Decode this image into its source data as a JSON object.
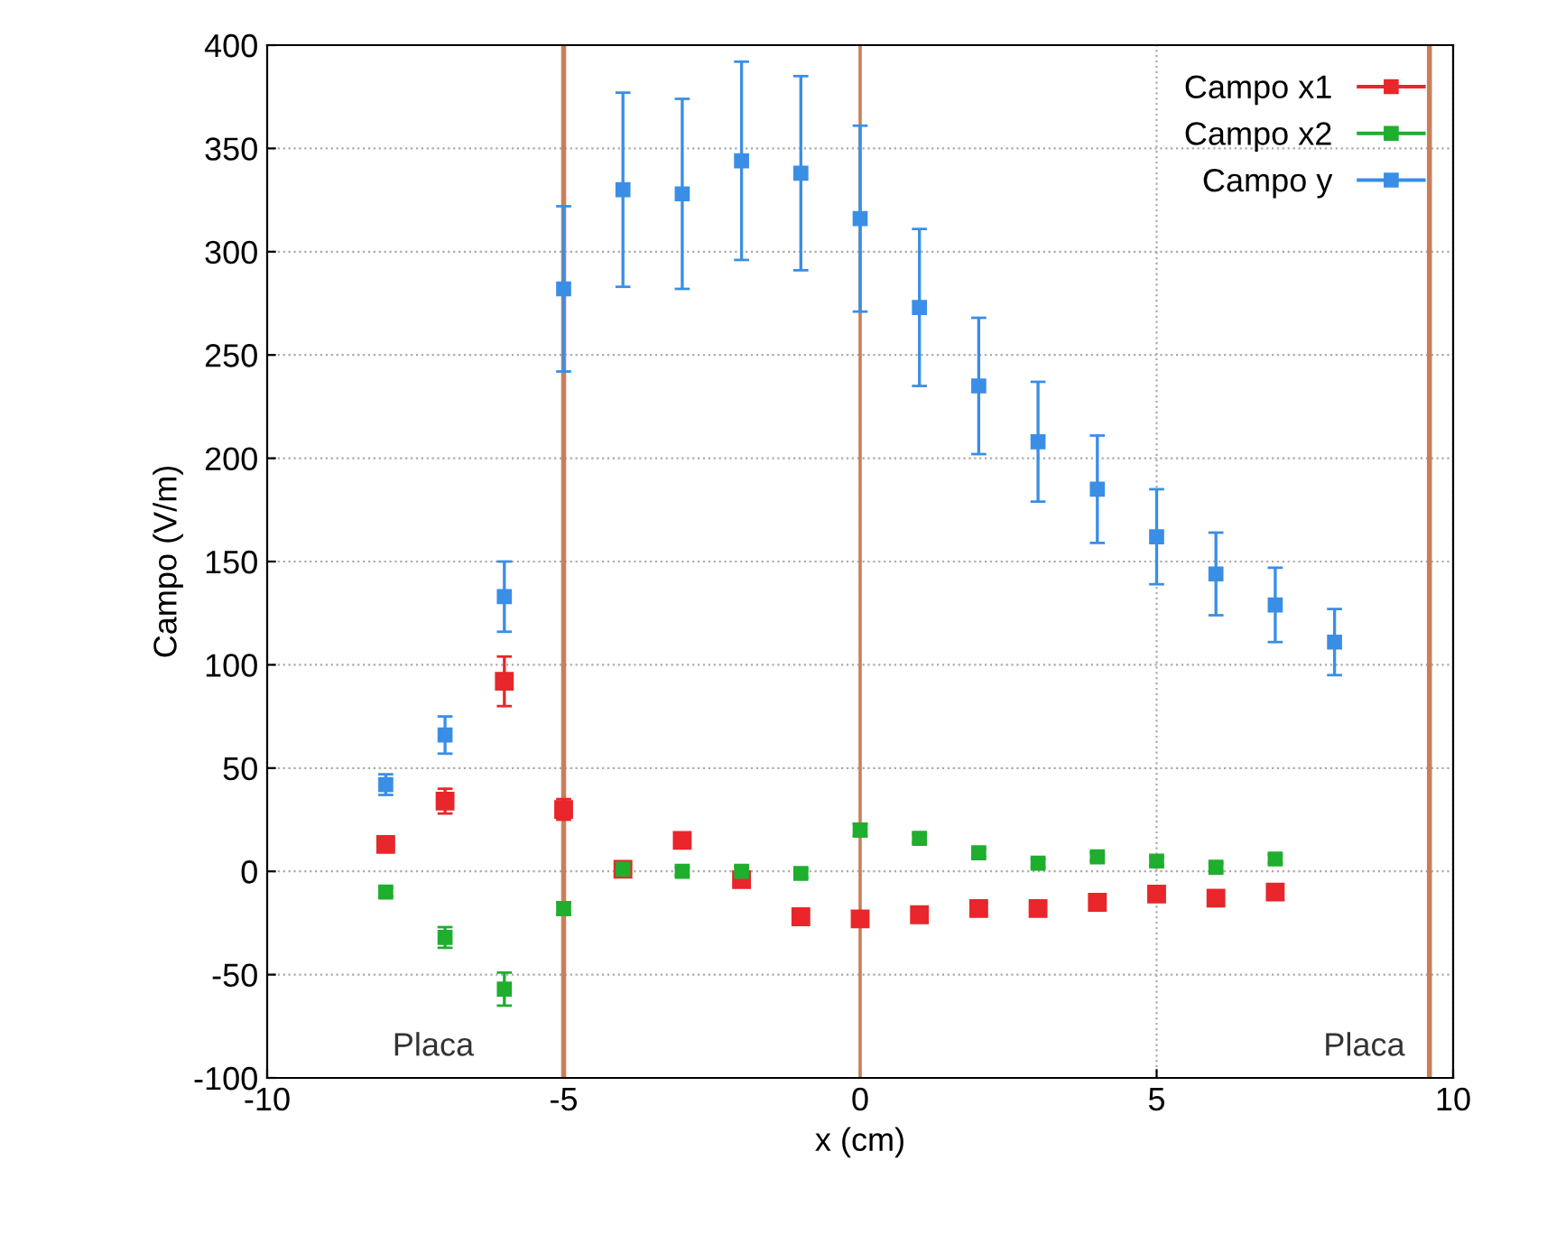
{
  "chart_data": {
    "type": "scatter",
    "xlabel": "x (cm)",
    "ylabel": "Campo (V/m)",
    "x": [
      -8,
      -7,
      -6,
      -5,
      -4,
      -3,
      -2,
      -1,
      0,
      1,
      2,
      3,
      4,
      5,
      6,
      7,
      8
    ],
    "series": [
      {
        "name": "Campo x1",
        "color": "#e8262b",
        "x": [
          -8,
          -7,
          -6,
          -5,
          -4,
          -3,
          -2,
          -1,
          0,
          1,
          2,
          3,
          4,
          5,
          6,
          7
        ],
        "values": [
          13,
          34,
          92,
          30,
          1,
          15,
          -4,
          -22,
          -23,
          -21,
          -18,
          -18,
          -15,
          -11,
          -13,
          -10
        ],
        "errors": [
          2,
          6,
          12,
          5,
          null,
          2,
          2,
          3,
          3,
          3,
          2,
          2,
          2,
          2,
          2,
          2
        ]
      },
      {
        "name": "Campo x2",
        "color": "#1fae2e",
        "x": [
          -8,
          -7,
          -6,
          -5,
          -4,
          -3,
          -2,
          -1,
          0,
          1,
          2,
          3,
          4,
          5,
          6,
          7
        ],
        "values": [
          -10,
          -32,
          -57,
          -18,
          1,
          0,
          0,
          -1,
          20,
          16,
          9,
          4,
          7,
          5,
          2,
          6
        ],
        "errors": [
          2,
          5,
          8,
          3,
          2,
          2,
          2,
          2,
          3,
          2,
          2,
          2,
          2,
          2,
          2,
          2
        ]
      },
      {
        "name": "Campo y",
        "color": "#3a8ee6",
        "values": [
          42,
          66,
          133,
          282,
          330,
          328,
          344,
          338,
          316,
          273,
          235,
          208,
          185,
          162,
          144,
          129,
          111
        ],
        "errors": [
          5,
          9,
          17,
          40,
          47,
          46,
          48,
          47,
          45,
          38,
          33,
          29,
          26,
          23,
          20,
          18,
          16
        ]
      }
    ],
    "xlim": [
      -10,
      10
    ],
    "ylim": [
      -100,
      400
    ],
    "xticks": [
      -10,
      -5,
      0,
      5,
      10
    ],
    "yticks": [
      -100,
      -50,
      0,
      50,
      100,
      150,
      200,
      250,
      300,
      350,
      400
    ],
    "ref_lines": [
      {
        "axis": "x",
        "value": -5,
        "color": "#c8805a"
      },
      {
        "axis": "x",
        "value": 0,
        "color": "#c8805a"
      },
      {
        "axis": "x",
        "value": 9.6,
        "color": "#c8805a"
      }
    ],
    "annotations": [
      "Placa",
      "Placa"
    ],
    "grid": true,
    "legend": "top right",
    "marker": "square",
    "line_style": "none"
  }
}
